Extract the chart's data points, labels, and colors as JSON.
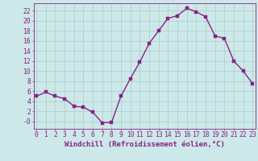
{
  "x": [
    0,
    1,
    2,
    3,
    4,
    5,
    6,
    7,
    8,
    9,
    10,
    11,
    12,
    13,
    14,
    15,
    16,
    17,
    18,
    19,
    20,
    21,
    22,
    23
  ],
  "y": [
    5,
    5.8,
    5,
    4.5,
    3,
    2.8,
    1.8,
    -0.3,
    -0.2,
    5,
    8.5,
    11.8,
    15.5,
    18,
    20.5,
    21,
    22.5,
    21.8,
    20.8,
    17,
    16.5,
    12,
    10,
    7.5
  ],
  "line_color": "#882288",
  "marker_color": "#882288",
  "bg_color": "#cde8e8",
  "grid_color": "#aacccc",
  "xlabel": "Windchill (Refroidissement éolien,°C)",
  "ytick_labels": [
    "-0",
    "2",
    "4",
    "6",
    "8",
    "10",
    "12",
    "14",
    "16",
    "18",
    "20",
    "22"
  ],
  "ytick_vals": [
    0,
    2,
    4,
    6,
    8,
    10,
    12,
    14,
    16,
    18,
    20,
    22
  ],
  "xticks": [
    0,
    1,
    2,
    3,
    4,
    5,
    6,
    7,
    8,
    9,
    10,
    11,
    12,
    13,
    14,
    15,
    16,
    17,
    18,
    19,
    20,
    21,
    22,
    23
  ],
  "ylim": [
    -1.5,
    23.5
  ],
  "xlim": [
    -0.3,
    23.3
  ],
  "xlabel_fontsize": 6.5,
  "tick_fontsize": 5.8,
  "marker_size": 2.5,
  "line_width": 1.0
}
